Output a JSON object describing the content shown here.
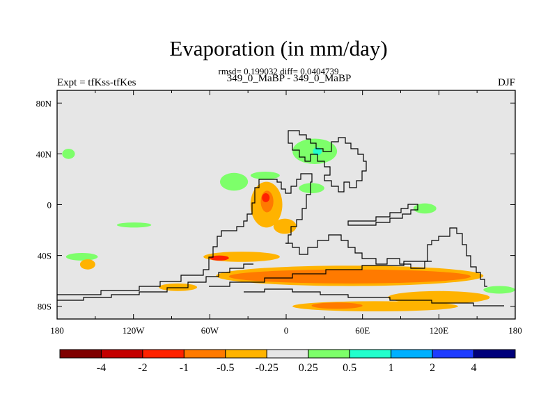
{
  "page": {
    "title": "Evaporation (in mm/day)",
    "stats": "rmsd= 0.199032 diff= 0.0404739",
    "left_label": "Expt = tfKss-tfKes",
    "center_label": "349_0_MaBP - 349_0_MaBP",
    "right_label": "DJF"
  },
  "chart_data": {
    "type": "heatmap",
    "title": "Evaporation (in mm/day)",
    "subtitle": "rmsd= 0.199032 diff= 0.0404739",
    "xlim": [
      -180,
      180
    ],
    "ylim": [
      -90,
      90
    ],
    "x_ticks": [
      {
        "value": -180,
        "label": "180"
      },
      {
        "value": -120,
        "label": "120W"
      },
      {
        "value": -60,
        "label": "60W"
      },
      {
        "value": 0,
        "label": "0"
      },
      {
        "value": 60,
        "label": "60E"
      },
      {
        "value": 120,
        "label": "120E"
      },
      {
        "value": 180,
        "label": "180"
      }
    ],
    "y_ticks": [
      {
        "value": 80,
        "label": "80N"
      },
      {
        "value": 40,
        "label": "40N"
      },
      {
        "value": 0,
        "label": "0"
      },
      {
        "value": -40,
        "label": "40S"
      },
      {
        "value": -80,
        "label": "80S"
      }
    ],
    "background_color": "#e6e6e6",
    "colorbar": {
      "colors": [
        "#7f0000",
        "#c40000",
        "#ff2200",
        "#ff7a00",
        "#ffb300",
        "#e6e6e6",
        "#7dff6a",
        "#22ffcc",
        "#00b0ff",
        "#1e3cff",
        "#00007a"
      ],
      "labels": [
        "-4",
        "-2",
        "-1",
        "-0.5",
        "-0.25",
        "0.25",
        "0.5",
        "1",
        "2",
        "4"
      ]
    },
    "regions": [
      {
        "level": "0.25 to 0.5",
        "color": "#7dff6a",
        "lon": [
          -176,
          -166
        ],
        "lat": [
          36,
          44
        ]
      },
      {
        "level": "0.25 to 0.5",
        "color": "#7dff6a",
        "lon": [
          -133,
          -106
        ],
        "lat": [
          -18,
          -14
        ]
      },
      {
        "level": "0.25 to 0.5",
        "color": "#7dff6a",
        "lon": [
          -173,
          -148
        ],
        "lat": [
          -44,
          -38
        ]
      },
      {
        "level": "0.25 to 0.5",
        "color": "#7dff6a",
        "lon": [
          -52,
          -30
        ],
        "lat": [
          11,
          25
        ]
      },
      {
        "level": "0.25 to 0.5",
        "color": "#7dff6a",
        "lon": [
          -28,
          -5
        ],
        "lat": [
          20,
          26
        ]
      },
      {
        "level": "0.25 to 0.5",
        "color": "#7dff6a",
        "lon": [
          5,
          40
        ],
        "lat": [
          32,
          52
        ]
      },
      {
        "level": "0.5 to 1",
        "color": "#22ffcc",
        "lon": [
          21,
          28
        ],
        "lat": [
          39,
          45
        ]
      },
      {
        "level": "0.25 to 0.5",
        "color": "#7dff6a",
        "lon": [
          10,
          30
        ],
        "lat": [
          9,
          17
        ]
      },
      {
        "level": "0.25 to 0.5",
        "color": "#7dff6a",
        "lon": [
          100,
          118
        ],
        "lat": [
          -7,
          1
        ]
      },
      {
        "level": "0.25 to 0.5",
        "color": "#7dff6a",
        "lon": [
          155,
          180
        ],
        "lat": [
          -70,
          -64
        ]
      },
      {
        "level": "-0.25 to -0.5",
        "color": "#ffb300",
        "lon": [
          -28,
          -3
        ],
        "lat": [
          -18,
          18
        ]
      },
      {
        "level": "-0.5 to -1",
        "color": "#ff7a00",
        "lon": [
          -20,
          -10
        ],
        "lat": [
          -6,
          11
        ]
      },
      {
        "level": "-1 to -2",
        "color": "#ff2200",
        "lon": [
          -19,
          -13
        ],
        "lat": [
          2,
          9
        ]
      },
      {
        "level": "-0.25 to -0.5",
        "color": "#ffb300",
        "lon": [
          -10,
          8
        ],
        "lat": [
          -23,
          -11
        ]
      },
      {
        "level": "-0.25 to -0.5",
        "color": "#ffb300",
        "lon": [
          -65,
          -5
        ],
        "lat": [
          -45,
          -37
        ]
      },
      {
        "level": "-0.25 to -0.5",
        "color": "#ffb300",
        "lon": [
          -100,
          -70
        ],
        "lat": [
          -68,
          -62
        ]
      },
      {
        "level": "-0.25 to -0.5",
        "color": "#ffb300",
        "lon": [
          -55,
          155
        ],
        "lat": [
          -64,
          -48
        ]
      },
      {
        "level": "-0.5 to -1",
        "color": "#ff7a00",
        "lon": [
          -45,
          145
        ],
        "lat": [
          -62,
          -51
        ]
      },
      {
        "level": "-1 to -2",
        "color": "#ff2200",
        "lon": [
          -60,
          -45
        ],
        "lat": [
          -44,
          -40
        ]
      },
      {
        "level": "-0.25 to -0.5",
        "color": "#ffb300",
        "lon": [
          5,
          135
        ],
        "lat": [
          -84,
          -76
        ]
      },
      {
        "level": "-0.5 to -1",
        "color": "#ff7a00",
        "lon": [
          20,
          60
        ],
        "lat": [
          -82,
          -77
        ]
      },
      {
        "level": "-0.25 to -0.5",
        "color": "#ffb300",
        "lon": [
          80,
          160
        ],
        "lat": [
          -78,
          -68
        ]
      },
      {
        "level": "-0.25 to -0.5",
        "color": "#ffb300",
        "lon": [
          -162,
          -150
        ],
        "lat": [
          -51,
          -43
        ]
      }
    ]
  }
}
